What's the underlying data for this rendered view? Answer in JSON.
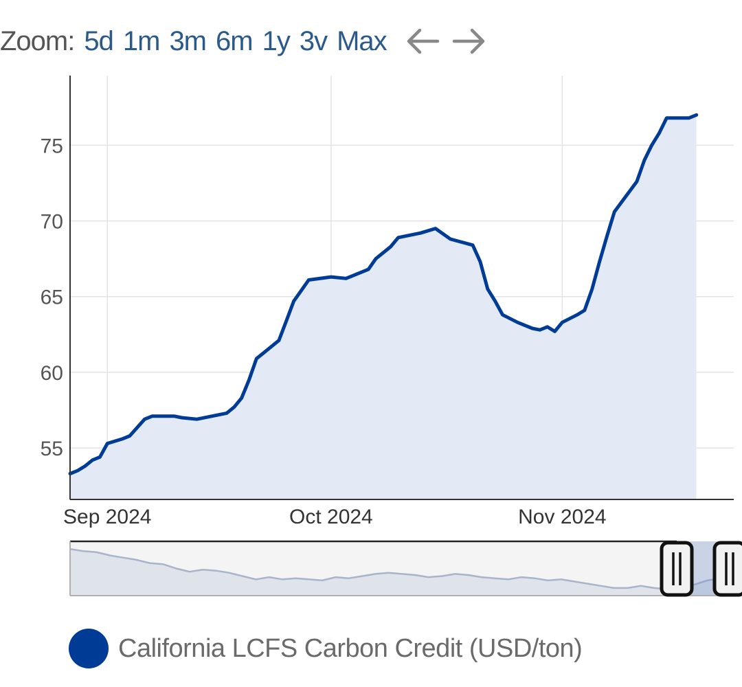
{
  "zoom": {
    "label": "Zoom:",
    "buttons": [
      "5d",
      "1m",
      "3m",
      "6m",
      "1y",
      "3v",
      "Max"
    ],
    "prev_icon": "arrow-left-icon",
    "next_icon": "arrow-right-icon"
  },
  "legend": {
    "label": "California LCFS Carbon Credit (USD/ton)",
    "color": "#003c96"
  },
  "colors": {
    "line": "#003c96",
    "area": "#e4eaf5",
    "grid": "#e3e3e3",
    "axis": "#333333",
    "tick_text": "#555555",
    "navigator_mask": "#f4f4f4",
    "navigator_series": "#a8b4cc"
  },
  "chart_data": {
    "type": "area",
    "title": "",
    "xlabel": "",
    "ylabel": "",
    "xlim": [
      "2024-08-27",
      "2024-11-24"
    ],
    "ylim": [
      51.6,
      79.6
    ],
    "yticks": [
      55,
      60,
      65,
      70,
      75
    ],
    "xticks": [
      {
        "label": "Sep 2024",
        "date": "2024-09-01"
      },
      {
        "label": "Oct 2024",
        "date": "2024-10-01"
      },
      {
        "label": "Nov 2024",
        "date": "2024-11-01"
      }
    ],
    "grid": true,
    "legend_position": "bottom-left",
    "series": [
      {
        "name": "California LCFS Carbon Credit (USD/ton)",
        "points": [
          [
            "2024-08-27",
            53.3
          ],
          [
            "2024-08-28",
            53.5
          ],
          [
            "2024-08-29",
            53.8
          ],
          [
            "2024-08-30",
            54.2
          ],
          [
            "2024-08-31",
            54.4
          ],
          [
            "2024-09-01",
            55.3
          ],
          [
            "2024-09-03",
            55.6
          ],
          [
            "2024-09-04",
            55.8
          ],
          [
            "2024-09-06",
            56.9
          ],
          [
            "2024-09-07",
            57.1
          ],
          [
            "2024-09-10",
            57.1
          ],
          [
            "2024-09-11",
            57.0
          ],
          [
            "2024-09-13",
            56.9
          ],
          [
            "2024-09-15",
            57.1
          ],
          [
            "2024-09-17",
            57.3
          ],
          [
            "2024-09-18",
            57.7
          ],
          [
            "2024-09-19",
            58.3
          ],
          [
            "2024-09-20",
            59.5
          ],
          [
            "2024-09-21",
            60.9
          ],
          [
            "2024-09-24",
            62.1
          ],
          [
            "2024-09-25",
            63.4
          ],
          [
            "2024-09-26",
            64.7
          ],
          [
            "2024-09-27",
            65.4
          ],
          [
            "2024-09-28",
            66.1
          ],
          [
            "2024-10-01",
            66.3
          ],
          [
            "2024-10-03",
            66.2
          ],
          [
            "2024-10-06",
            66.8
          ],
          [
            "2024-10-07",
            67.5
          ],
          [
            "2024-10-09",
            68.3
          ],
          [
            "2024-10-10",
            68.9
          ],
          [
            "2024-10-13",
            69.2
          ],
          [
            "2024-10-15",
            69.5
          ],
          [
            "2024-10-17",
            68.8
          ],
          [
            "2024-10-20",
            68.4
          ],
          [
            "2024-10-21",
            67.3
          ],
          [
            "2024-10-22",
            65.5
          ],
          [
            "2024-10-23",
            64.7
          ],
          [
            "2024-10-24",
            63.8
          ],
          [
            "2024-10-26",
            63.3
          ],
          [
            "2024-10-28",
            62.9
          ],
          [
            "2024-10-29",
            62.8
          ],
          [
            "2024-10-30",
            63.0
          ],
          [
            "2024-10-31",
            62.7
          ],
          [
            "2024-11-01",
            63.3
          ],
          [
            "2024-11-03",
            63.8
          ],
          [
            "2024-11-04",
            64.1
          ],
          [
            "2024-11-05",
            65.5
          ],
          [
            "2024-11-06",
            67.3
          ],
          [
            "2024-11-07",
            69.0
          ],
          [
            "2024-11-08",
            70.6
          ],
          [
            "2024-11-11",
            72.6
          ],
          [
            "2024-11-12",
            74.0
          ],
          [
            "2024-11-13",
            75.0
          ],
          [
            "2024-11-14",
            75.8
          ],
          [
            "2024-11-15",
            76.8
          ],
          [
            "2024-11-18",
            76.8
          ],
          [
            "2024-11-19",
            77.0
          ]
        ]
      }
    ],
    "navigator": {
      "selected_range": "latest",
      "series_points": [
        [
          0,
          0.86
        ],
        [
          0.02,
          0.82
        ],
        [
          0.04,
          0.8
        ],
        [
          0.06,
          0.74
        ],
        [
          0.08,
          0.7
        ],
        [
          0.1,
          0.66
        ],
        [
          0.12,
          0.6
        ],
        [
          0.14,
          0.58
        ],
        [
          0.16,
          0.5
        ],
        [
          0.18,
          0.44
        ],
        [
          0.2,
          0.48
        ],
        [
          0.22,
          0.46
        ],
        [
          0.24,
          0.42
        ],
        [
          0.26,
          0.36
        ],
        [
          0.28,
          0.3
        ],
        [
          0.3,
          0.34
        ],
        [
          0.32,
          0.3
        ],
        [
          0.34,
          0.32
        ],
        [
          0.36,
          0.3
        ],
        [
          0.38,
          0.28
        ],
        [
          0.4,
          0.34
        ],
        [
          0.42,
          0.32
        ],
        [
          0.44,
          0.36
        ],
        [
          0.46,
          0.4
        ],
        [
          0.48,
          0.42
        ],
        [
          0.5,
          0.4
        ],
        [
          0.52,
          0.38
        ],
        [
          0.54,
          0.34
        ],
        [
          0.56,
          0.36
        ],
        [
          0.58,
          0.4
        ],
        [
          0.6,
          0.38
        ],
        [
          0.62,
          0.34
        ],
        [
          0.64,
          0.32
        ],
        [
          0.66,
          0.3
        ],
        [
          0.68,
          0.34
        ],
        [
          0.7,
          0.32
        ],
        [
          0.72,
          0.28
        ],
        [
          0.74,
          0.3
        ],
        [
          0.76,
          0.26
        ],
        [
          0.78,
          0.22
        ],
        [
          0.8,
          0.18
        ],
        [
          0.82,
          0.14
        ],
        [
          0.84,
          0.14
        ],
        [
          0.86,
          0.18
        ],
        [
          0.88,
          0.14
        ],
        [
          0.9,
          0.12
        ],
        [
          0.92,
          0.18
        ],
        [
          0.94,
          0.2
        ],
        [
          0.96,
          0.28
        ],
        [
          0.98,
          0.32
        ],
        [
          1.0,
          0.34
        ]
      ]
    }
  }
}
